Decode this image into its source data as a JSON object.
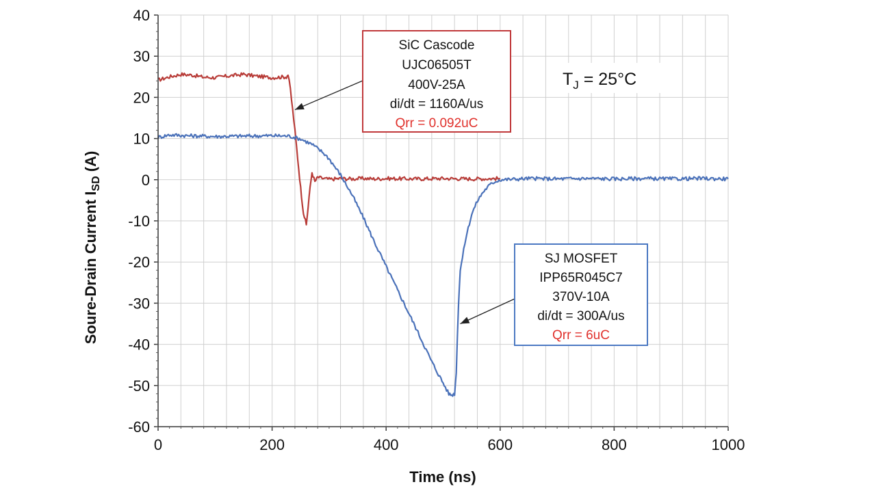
{
  "chart_data": {
    "type": "line",
    "title": "",
    "xlabel": "Time (ns)",
    "ylabel": {
      "prefix": "Soure-Drain Current I",
      "sub": "SD",
      "suffix": " (A)"
    },
    "xlim": [
      0,
      1000
    ],
    "ylim": [
      -60,
      40
    ],
    "x_ticks": [
      0,
      200,
      400,
      600,
      800,
      1000
    ],
    "y_ticks": [
      40,
      30,
      20,
      10,
      0,
      -10,
      -20,
      -30,
      -40,
      -50,
      -60
    ],
    "grid": true,
    "series": [
      {
        "color": "#b83c38",
        "x": [
          0,
          20,
          40,
          60,
          80,
          100,
          130,
          150,
          170,
          200,
          225,
          228,
          232,
          236,
          240,
          245,
          250,
          255,
          260,
          265,
          270,
          275,
          280,
          290,
          300,
          320,
          340,
          360,
          380,
          400,
          450,
          500,
          550,
          600
        ],
        "y": [
          24.2,
          25.0,
          25.6,
          25.4,
          24.9,
          24.8,
          25.3,
          25.6,
          25.2,
          24.8,
          25.0,
          25.5,
          22,
          17,
          12,
          5,
          -2,
          -8,
          -11,
          -4,
          1.8,
          -0.5,
          0.6,
          0.3,
          0.1,
          0.3,
          0.2,
          0.3,
          0.2,
          0.3,
          0.2,
          0.3,
          0.2,
          0.3
        ]
      },
      {
        "color": "#4a71b9",
        "x": [
          0,
          20,
          50,
          100,
          150,
          200,
          230,
          250,
          270,
          290,
          300,
          320,
          340,
          360,
          380,
          400,
          420,
          440,
          460,
          480,
          500,
          510,
          515,
          520,
          523,
          525,
          527,
          530,
          540,
          550,
          560,
          570,
          580,
          590,
          600,
          620,
          650,
          700,
          750,
          800,
          850,
          900,
          950,
          1000
        ],
        "y": [
          10.3,
          10.9,
          10.7,
          10.5,
          10.6,
          10.7,
          10.6,
          9.9,
          8.6,
          6.5,
          5.1,
          1.2,
          -3.6,
          -9.2,
          -15.3,
          -21.1,
          -26.8,
          -32.5,
          -38.3,
          -44.2,
          -49.4,
          -52.0,
          -52.3,
          -52.0,
          -47,
          -38,
          -30,
          -22,
          -14,
          -8.4,
          -5.2,
          -3.0,
          -1.5,
          -0.5,
          0.0,
          0.1,
          0.3,
          0.2,
          0.3,
          0.2,
          0.3,
          0.2,
          0.3,
          0.2
        ]
      }
    ],
    "annotations": {
      "sic_box": {
        "lines": [
          "SiC Cascode",
          "UJC06505T",
          "400V-25A",
          "di/dt = 1160A/us"
        ],
        "highlight": "Qrr = 0.092uC",
        "border_color": "#c0383a",
        "arrow_target": [
          240,
          17
        ]
      },
      "sj_box": {
        "lines": [
          "SJ MOSFET",
          "IPP65R045C7",
          "370V-10A",
          "di/dt = 300A/us"
        ],
        "highlight": "Qrr = 6uC",
        "border_color": "#4a78c2",
        "arrow_target": [
          530,
          -35
        ]
      },
      "tj_label": {
        "prefix": "T",
        "sub": "J",
        "suffix": " = 25°C"
      }
    },
    "highlight_color": "#e0302b"
  }
}
